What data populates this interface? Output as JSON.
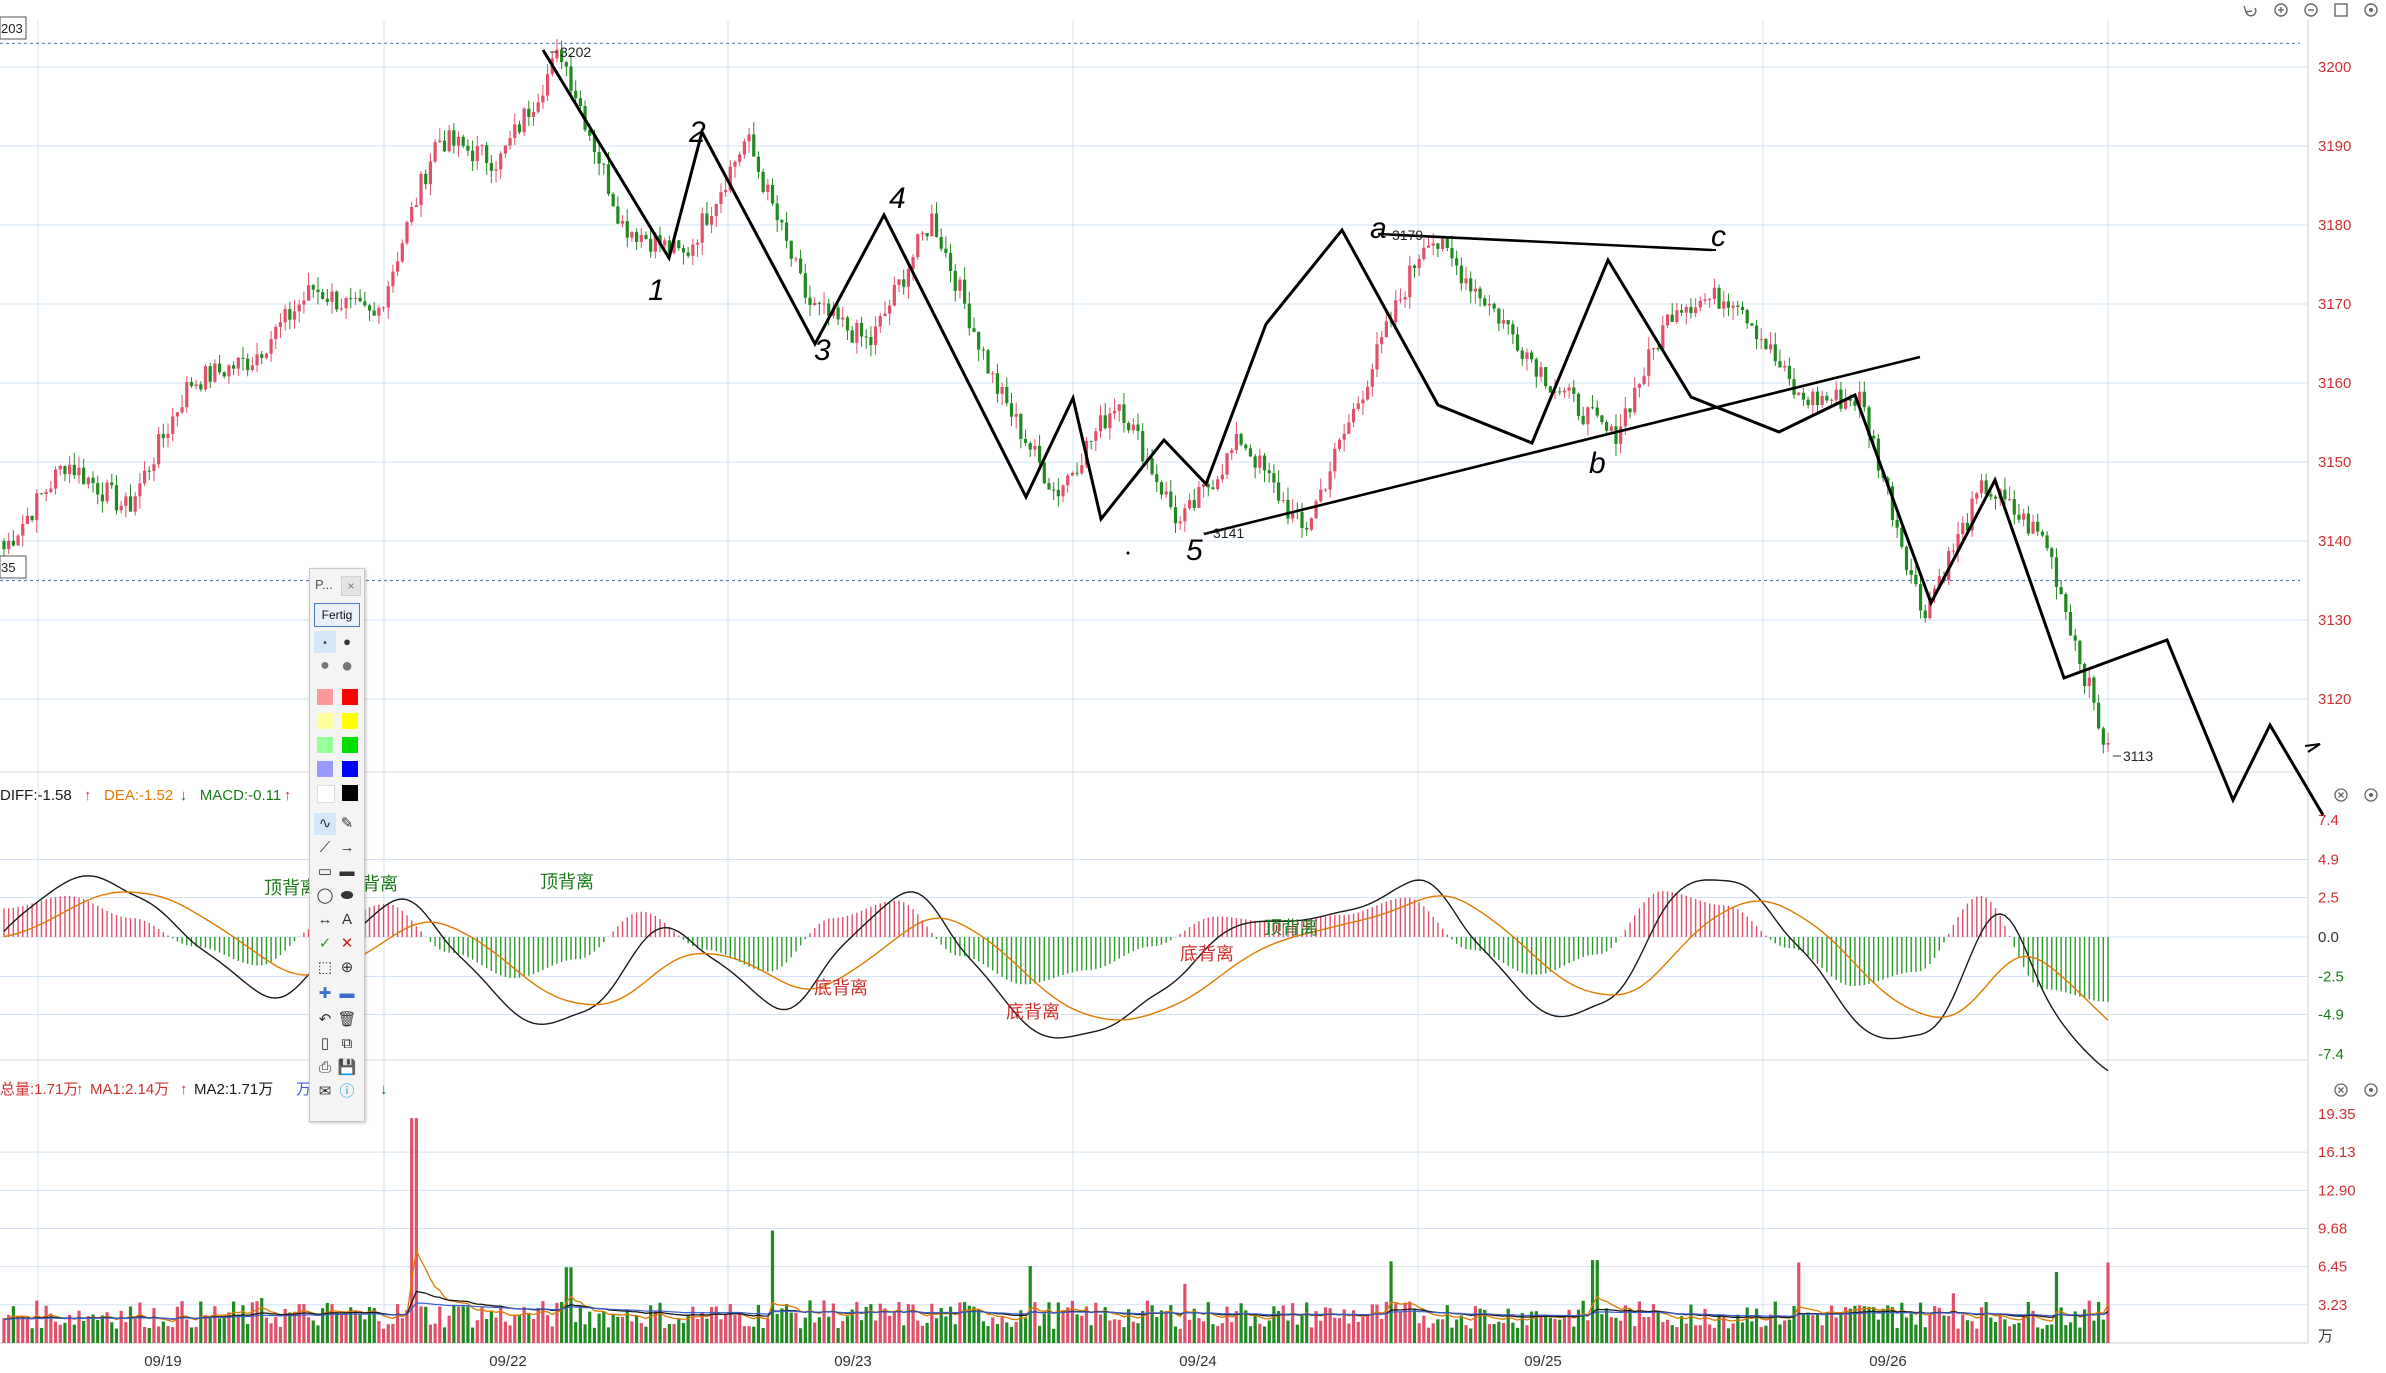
{
  "chart_data": [
    {
      "type": "candlestick",
      "panel": "price",
      "ylim": [
        3113,
        3203
      ],
      "y_ticks": [
        3200,
        3190,
        3180,
        3170,
        3160,
        3150,
        3140,
        3130,
        3120
      ],
      "x_ticks": [
        "09/19",
        "09/22",
        "09/23",
        "09/24",
        "09/25",
        "09/26"
      ],
      "reference_lines": [
        3203,
        3135
      ],
      "edge_labels": {
        "top": "203",
        "low": "35"
      },
      "point_labels": [
        {
          "x": "09/22",
          "value": 3202,
          "text": "3202"
        },
        {
          "x": "09/24",
          "value": 3141,
          "text": "3141"
        },
        {
          "x": "09/24",
          "value": 3179,
          "text": "3179"
        },
        {
          "x": "09/26",
          "value": 3113,
          "text": "3113"
        }
      ],
      "annotations": [
        "1",
        "2",
        "3",
        "4",
        "5",
        "a",
        "b",
        "c"
      ],
      "approx_close_path": [
        {
          "x": "09/19",
          "y": 3139
        },
        {
          "x": "09/19",
          "y": 3150
        },
        {
          "x": "09/19",
          "y": 3144
        },
        {
          "x": "09/19",
          "y": 3160
        },
        {
          "x": "09/19",
          "y": 3163
        },
        {
          "x": "09/19",
          "y": 3172
        },
        {
          "x": "09/19",
          "y": 3168
        },
        {
          "x": "09/22",
          "y": 3191
        },
        {
          "x": "09/22",
          "y": 3188
        },
        {
          "x": "09/22",
          "y": 3202
        },
        {
          "x": "09/22",
          "y": 3180
        },
        {
          "x": "09/22",
          "y": 3176
        },
        {
          "x": "09/22",
          "y": 3191
        },
        {
          "x": "09/23",
          "y": 3170
        },
        {
          "x": "09/23",
          "y": 3165
        },
        {
          "x": "09/23",
          "y": 3181
        },
        {
          "x": "09/23",
          "y": 3160
        },
        {
          "x": "09/23",
          "y": 3146
        },
        {
          "x": "09/23",
          "y": 3158
        },
        {
          "x": "09/24",
          "y": 3142
        },
        {
          "x": "09/24",
          "y": 3153
        },
        {
          "x": "09/24",
          "y": 3141
        },
        {
          "x": "09/24",
          "y": 3160
        },
        {
          "x": "09/24",
          "y": 3179
        },
        {
          "x": "09/24",
          "y": 3170
        },
        {
          "x": "09/25",
          "y": 3160
        },
        {
          "x": "09/25",
          "y": 3153
        },
        {
          "x": "09/25",
          "y": 3170
        },
        {
          "x": "09/25",
          "y": 3171
        },
        {
          "x": "09/25",
          "y": 3158
        },
        {
          "x": "09/26",
          "y": 3158
        },
        {
          "x": "09/26",
          "y": 3131
        },
        {
          "x": "09/26",
          "y": 3147
        },
        {
          "x": "09/26",
          "y": 3140
        },
        {
          "x": "09/26",
          "y": 3113
        }
      ]
    },
    {
      "type": "bar",
      "panel": "macd",
      "legend": [
        {
          "text": "DIFF:-1.58",
          "color": "#1a1a1a"
        },
        {
          "text": "DEA:-1.52",
          "color": "#e07a00"
        },
        {
          "text": "MACD:-0.11",
          "color": "#1a7a1a"
        }
      ],
      "arrows": [
        "↑",
        "↓",
        "↑"
      ],
      "ylim": [
        -7.4,
        7.4
      ],
      "y_ticks": [
        "7.4",
        "4.9",
        "2.5",
        "0.0",
        "-2.5",
        "-4.9",
        "-7.4"
      ],
      "annotations": [
        "顶背离",
        "顶背离",
        "顶背离",
        "底背离",
        "底背离",
        "底背离",
        "顶背离"
      ],
      "approx_histogram": [
        1.8,
        2.6,
        1.2,
        -0.6,
        -1.8,
        0.8,
        2.1,
        -1.0,
        -2.6,
        -1.4,
        1.6,
        -0.8,
        -2.2,
        1.2,
        2.3,
        -1.2,
        -3.0,
        -2.1,
        -0.6,
        1.3,
        0.9,
        1.4,
        2.5,
        -0.8,
        -2.4,
        -1.1,
        2.9,
        2.0,
        -0.7,
        -3.1,
        -2.2,
        2.6,
        -3.3,
        -4.1
      ]
    },
    {
      "type": "bar",
      "panel": "volume",
      "legend": [
        {
          "text": "总量:1.71万",
          "color": "#d03030"
        },
        {
          "text": "MA1:2.14万",
          "color": "#d03030"
        },
        {
          "text": "MA2:1.71万",
          "color": "#1a1a1a"
        },
        {
          "text": "万",
          "color": "#3b5fcf"
        }
      ],
      "unit": "万",
      "ylim": [
        0,
        19.35
      ],
      "y_ticks": [
        "19.35",
        "16.13",
        "12.90",
        "9.68",
        "6.45",
        "3.23"
      ],
      "approx_values": [
        2.1,
        1.8,
        2.6,
        1.4,
        2.2,
        3.8,
        1.9,
        2.0,
        19.0,
        3.1,
        2.4,
        6.4,
        2.2,
        1.6,
        2.0,
        9.5,
        3.6,
        1.9,
        1.7,
        2.8,
        6.5,
        2.3,
        1.8,
        5.0,
        2.7,
        1.9,
        2.1,
        6.9,
        2.0,
        1.6,
        2.4,
        7.0,
        2.2,
        1.5,
        3.0,
        6.8,
        2.9,
        3.4,
        4.2,
        2.0,
        6.0,
        6.8
      ]
    }
  ],
  "toolbar_icons": [
    "undo-icon",
    "zoom-in-icon",
    "zoom-out-icon",
    "window-icon",
    "settings-icon"
  ],
  "toolbox": {
    "title": "P...",
    "close": "×",
    "done_label": "Fertig",
    "text_tool": "A",
    "colors": [
      "#ff9999",
      "#ff0000",
      "#ffff99",
      "#ffff00",
      "#99ff99",
      "#00dd00",
      "#9999ff",
      "#0000ff",
      "#ffffff",
      "#000000"
    ]
  }
}
